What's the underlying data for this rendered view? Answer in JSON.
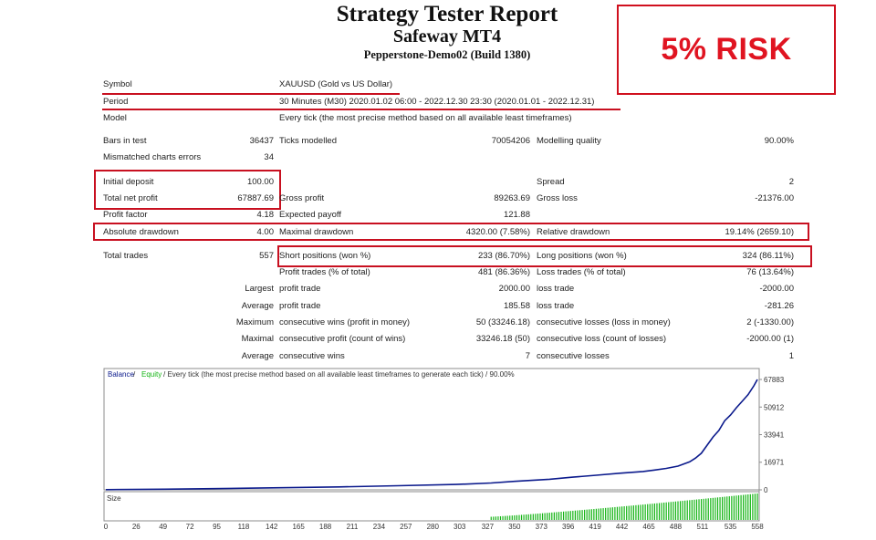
{
  "header": {
    "title": "Strategy Tester Report",
    "subtitle": "Safeway MT4",
    "server": "Pepperstone-Demo02 (Build 1380)",
    "risk_label": "5% RISK"
  },
  "colors": {
    "highlight": "#c81020",
    "risk_text": "#e01421",
    "balance_line": "#0b1a8c",
    "size_bars": "#13b413",
    "legend_balance": "#0b1a8c",
    "legend_equity": "#13b413"
  },
  "report": {
    "symbol_label": "Symbol",
    "symbol_value": "XAUUSD (Gold vs US Dollar)",
    "period_label": "Period",
    "period_value": "30 Minutes (M30) 2020.01.02 06:00 - 2022.12.30 23:30 (2020.01.01 - 2022.12.31)",
    "model_label": "Model",
    "model_value": "Every tick (the most precise method based on all available least timeframes)",
    "bars_label": "Bars in test",
    "bars_value": "36437",
    "ticks_label": "Ticks modelled",
    "ticks_value": "70054206",
    "quality_label": "Modelling quality",
    "quality_value": "90.00%",
    "mismatch_label": "Mismatched charts errors",
    "mismatch_value": "34",
    "deposit_label": "Initial deposit",
    "deposit_value": "100.00",
    "spread_label": "Spread",
    "spread_value": "2",
    "netprofit_label": "Total net profit",
    "netprofit_value": "67887.69",
    "grossprofit_label": "Gross profit",
    "grossprofit_value": "89263.69",
    "grossloss_label": "Gross loss",
    "grossloss_value": "-21376.00",
    "pf_label": "Profit factor",
    "pf_value": "4.18",
    "payoff_label": "Expected payoff",
    "payoff_value": "121.88",
    "absdd_label": "Absolute drawdown",
    "absdd_value": "4.00",
    "maxdd_label": "Maximal drawdown",
    "maxdd_value": "4320.00 (7.58%)",
    "reldd_label": "Relative drawdown",
    "reldd_value": "19.14% (2659.10)",
    "trades_label": "Total trades",
    "trades_value": "557",
    "short_label": "Short positions (won %)",
    "short_value": "233 (86.70%)",
    "long_label": "Long positions (won %)",
    "long_value": "324 (86.11%)",
    "ptrades_label": "Profit trades (% of total)",
    "ptrades_value": "481 (86.36%)",
    "ltrades_label": "Loss trades (% of total)",
    "ltrades_value": "76 (13.64%)",
    "largest_label": "Largest",
    "lpt_label": "profit trade",
    "lpt_value": "2000.00",
    "llt_label": "loss trade",
    "llt_value": "-2000.00",
    "average_label": "Average",
    "apt_label": "profit trade",
    "apt_value": "185.58",
    "alt_label": "loss trade",
    "alt_value": "-281.26",
    "maximum_label": "Maximum",
    "mcw_label": "consecutive wins (profit in money)",
    "mcw_value": "50 (33246.18)",
    "mcl_label": "consecutive losses (loss in money)",
    "mcl_value": "2 (-1330.00)",
    "maximal_label": "Maximal",
    "mcp_label": "consecutive profit (count of wins)",
    "mcp_value": "33246.18 (50)",
    "mcloss_label": "consecutive loss (count of losses)",
    "mcloss_value": "-2000.00 (1)",
    "average2_label": "Average",
    "acw_label": "consecutive wins",
    "acw_value": "7",
    "acl_label": "consecutive losses",
    "acl_value": "1"
  },
  "chart_data": {
    "type": "line",
    "legend": {
      "balance": "Balance",
      "sep": " / ",
      "equity": "Equity",
      "rest": " / Every tick (the most precise method based on all available least timeframes to generate each tick) / 90.00%"
    },
    "size_label": "Size",
    "y_ticks": [
      "67883",
      "50912",
      "33941",
      "16971",
      "0"
    ],
    "ylim": [
      0,
      67883
    ],
    "x_ticks": [
      "0",
      "26",
      "49",
      "72",
      "95",
      "118",
      "142",
      "165",
      "188",
      "211",
      "234",
      "257",
      "280",
      "303",
      "327",
      "350",
      "373",
      "396",
      "419",
      "442",
      "465",
      "488",
      "511",
      "535",
      "558"
    ],
    "xlim": [
      0,
      558
    ],
    "series": [
      {
        "name": "Balance",
        "x": [
          0,
          50,
          100,
          150,
          200,
          250,
          300,
          330,
          350,
          380,
          400,
          420,
          440,
          460,
          470,
          480,
          490,
          500,
          505,
          510,
          515,
          520,
          525,
          530,
          535,
          540,
          545,
          550,
          555,
          558
        ],
        "y": [
          100,
          400,
          800,
          1300,
          1800,
          2500,
          3300,
          4200,
          5200,
          6500,
          7800,
          9000,
          10200,
          11300,
          12200,
          13200,
          14600,
          17200,
          19500,
          22500,
          27500,
          32500,
          36500,
          42500,
          46000,
          50500,
          54500,
          58500,
          64000,
          67883
        ]
      }
    ],
    "size_bars": {
      "x_start": 330,
      "x_end": 558,
      "min_level": 0.12,
      "max_level": 1.0
    }
  }
}
